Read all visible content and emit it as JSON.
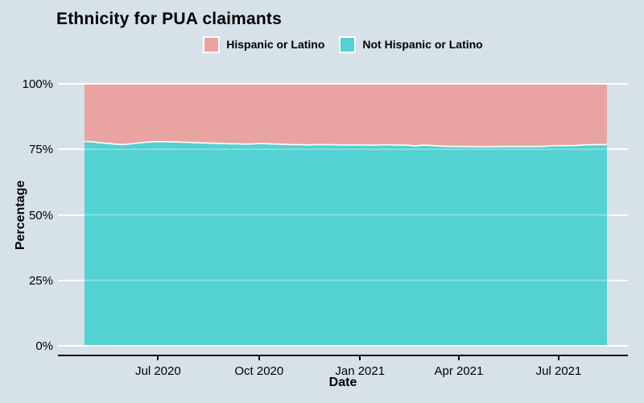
{
  "title": "Ethnicity for PUA claimants",
  "legend": {
    "position": "top",
    "items": [
      {
        "label": "Hispanic or Latino",
        "color": "#e9a3a1"
      },
      {
        "label": "Not Hispanic or Latino",
        "color": "#54d1d2"
      }
    ]
  },
  "axes": {
    "x_label": "Date",
    "y_label": "Percentage"
  },
  "colors": {
    "background": "#d6e1e8",
    "gridline": "#ffffff",
    "axis_line": "#000000",
    "text": "#000000",
    "series_divider": "#ffffff"
  },
  "chart_data": {
    "type": "area",
    "stacked": true,
    "title": "Ethnicity for PUA claimants",
    "xlabel": "Date",
    "ylabel": "Percentage",
    "ylim": [
      0,
      100
    ],
    "grid": "major-white-horizontal",
    "legend_position": "top-center",
    "yticks": [
      {
        "label": "0%",
        "value": 0
      },
      {
        "label": "25%",
        "value": 25
      },
      {
        "label": "50%",
        "value": 50
      },
      {
        "label": "75%",
        "value": 75
      },
      {
        "label": "100%",
        "value": 100
      }
    ],
    "xticks": [
      {
        "label": "Jul 2020",
        "date": "2020-07-01"
      },
      {
        "label": "Oct 2020",
        "date": "2020-10-01"
      },
      {
        "label": "Jan 2021",
        "date": "2021-01-01"
      },
      {
        "label": "Apr 2021",
        "date": "2021-04-01"
      },
      {
        "label": "Jul 2021",
        "date": "2021-07-01"
      }
    ],
    "x_dates": [
      "2020-04-25",
      "2020-05-02",
      "2020-05-09",
      "2020-05-16",
      "2020-05-23",
      "2020-05-30",
      "2020-06-06",
      "2020-06-13",
      "2020-06-20",
      "2020-06-27",
      "2020-07-04",
      "2020-07-11",
      "2020-07-18",
      "2020-07-25",
      "2020-08-01",
      "2020-08-08",
      "2020-08-15",
      "2020-08-22",
      "2020-08-29",
      "2020-09-05",
      "2020-09-12",
      "2020-09-19",
      "2020-09-26",
      "2020-10-03",
      "2020-10-10",
      "2020-10-17",
      "2020-10-24",
      "2020-10-31",
      "2020-11-07",
      "2020-11-14",
      "2020-11-21",
      "2020-11-28",
      "2020-12-05",
      "2020-12-12",
      "2020-12-19",
      "2020-12-26",
      "2021-01-02",
      "2021-01-09",
      "2021-01-16",
      "2021-01-23",
      "2021-01-30",
      "2021-02-06",
      "2021-02-13",
      "2021-02-20",
      "2021-02-27",
      "2021-03-06",
      "2021-03-13",
      "2021-03-20",
      "2021-03-27",
      "2021-04-03",
      "2021-04-10",
      "2021-04-17",
      "2021-04-24",
      "2021-05-01",
      "2021-05-08",
      "2021-05-15",
      "2021-05-22",
      "2021-05-29",
      "2021-06-05",
      "2021-06-12",
      "2021-06-19",
      "2021-06-26",
      "2021-07-03",
      "2021-07-10",
      "2021-07-17",
      "2021-07-24",
      "2021-07-31",
      "2021-08-07",
      "2021-08-14"
    ],
    "series": [
      {
        "name": "Hispanic or Latino",
        "color": "#e9a3a1",
        "values": [
          21.7,
          21.8,
          22.2,
          22.4,
          22.7,
          22.9,
          22.6,
          22.3,
          22.0,
          21.8,
          21.8,
          21.8,
          21.9,
          22.0,
          22.1,
          22.2,
          22.3,
          22.4,
          22.5,
          22.6,
          22.6,
          22.7,
          22.6,
          22.5,
          22.6,
          22.7,
          22.8,
          22.9,
          22.9,
          23.0,
          22.9,
          22.9,
          22.9,
          23.0,
          23.0,
          23.0,
          23.0,
          23.1,
          23.1,
          22.9,
          23.0,
          23.1,
          23.1,
          23.4,
          23.1,
          23.2,
          23.4,
          23.5,
          23.6,
          23.6,
          23.6,
          23.7,
          23.7,
          23.7,
          23.6,
          23.6,
          23.6,
          23.6,
          23.6,
          23.6,
          23.5,
          23.3,
          23.3,
          23.3,
          23.2,
          23.0,
          22.9,
          22.9,
          22.9
        ]
      },
      {
        "name": "Not Hispanic or Latino",
        "color": "#54d1d2",
        "values": [
          78.3,
          78.2,
          77.8,
          77.6,
          77.3,
          77.1,
          77.4,
          77.7,
          78.0,
          78.2,
          78.2,
          78.2,
          78.1,
          78.0,
          77.9,
          77.8,
          77.7,
          77.6,
          77.5,
          77.4,
          77.4,
          77.3,
          77.4,
          77.5,
          77.4,
          77.3,
          77.2,
          77.1,
          77.1,
          77.0,
          77.1,
          77.1,
          77.1,
          77.0,
          77.0,
          77.0,
          77.0,
          76.9,
          76.9,
          77.1,
          77.0,
          76.9,
          76.9,
          76.6,
          76.9,
          76.8,
          76.6,
          76.5,
          76.4,
          76.4,
          76.4,
          76.3,
          76.3,
          76.3,
          76.4,
          76.4,
          76.4,
          76.4,
          76.4,
          76.4,
          76.5,
          76.7,
          76.7,
          76.7,
          76.8,
          77.0,
          77.1,
          77.1,
          77.1
        ]
      }
    ]
  }
}
